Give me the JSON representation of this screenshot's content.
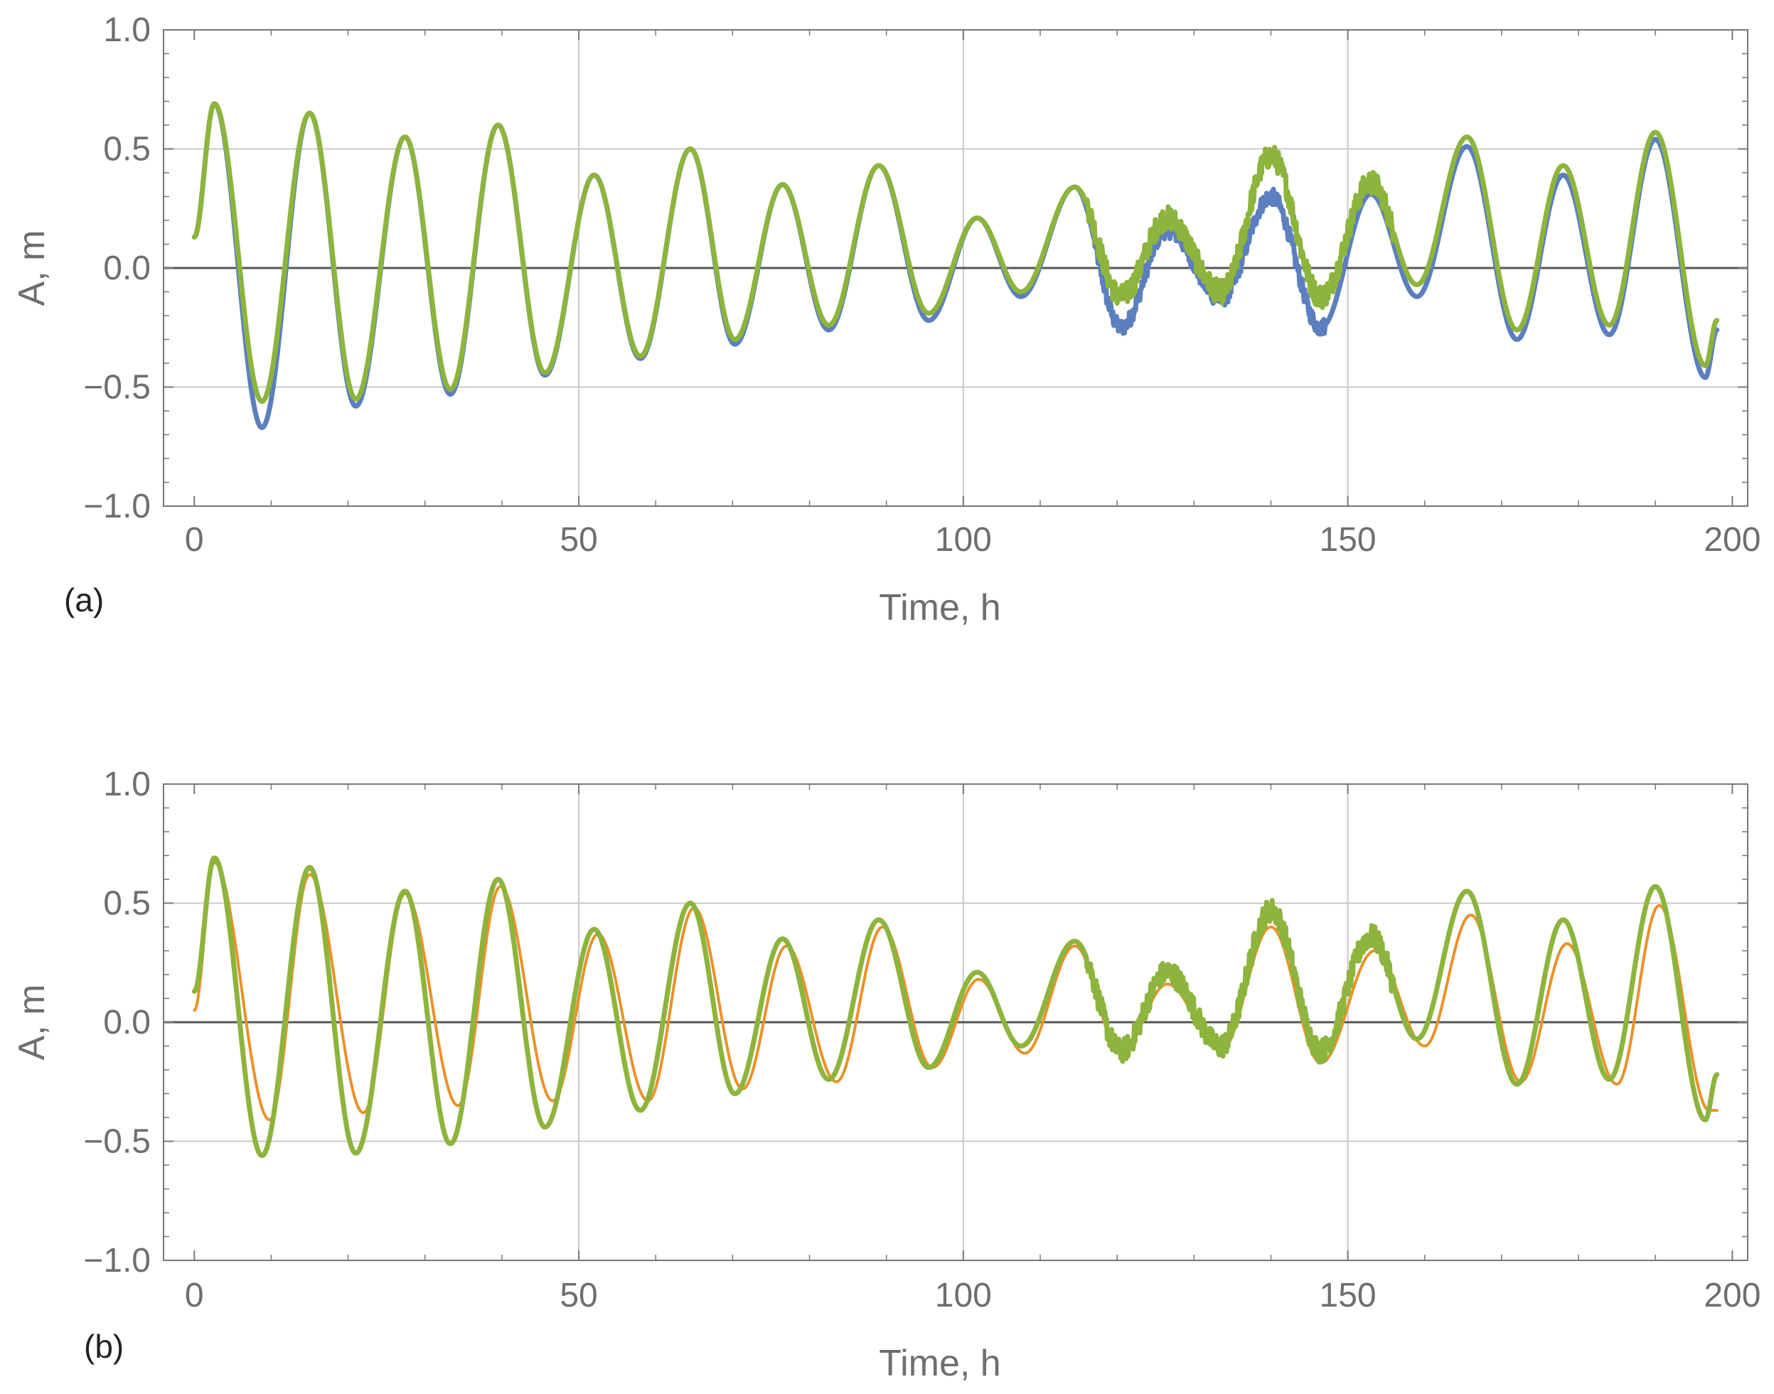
{
  "colors": {
    "blue": "#5b7fbf",
    "green": "#8db43c",
    "orange": "#e8922a",
    "grid": "#c9c9c9",
    "zero_line": "#555555",
    "frame": "#777777"
  },
  "chart_data": [
    {
      "type": "line",
      "panel_label": "(a)",
      "xlabel": "Time, h",
      "ylabel": "A, m",
      "xlim": [
        -4,
        202
      ],
      "ylim": [
        -1.0,
        1.0
      ],
      "x_ticks": [
        "0",
        "50",
        "100",
        "150",
        "200"
      ],
      "y_ticks": [
        "1.0",
        "0.5",
        "0.0",
        "−0.5",
        "−1.0"
      ],
      "grid_x": [
        50,
        100,
        150
      ],
      "grid_y": [
        0.5,
        -0.5
      ],
      "zero_line": true,
      "series": [
        {
          "color": "#5b7fbf",
          "x": [
            0,
            2.6,
            8.8,
            15.0,
            21.0,
            27.4,
            33.3,
            39.5,
            45.6,
            52.0,
            58.0,
            64.5,
            70.3,
            76.5,
            82.5,
            89.0,
            95.5,
            101.8,
            107.5,
            114.5,
            120.5,
            126.5,
            133.5,
            140.0,
            146.5,
            153.0,
            159.0,
            165.5,
            172.0,
            178.0,
            184.0,
            190.0,
            196.5,
            198.0
          ],
          "y": [
            0.13,
            0.69,
            -0.67,
            0.65,
            -0.58,
            0.55,
            -0.53,
            0.6,
            -0.45,
            0.39,
            -0.38,
            0.5,
            -0.32,
            0.35,
            -0.26,
            0.43,
            -0.22,
            0.21,
            -0.12,
            0.34,
            -0.25,
            0.16,
            -0.13,
            0.3,
            -0.25,
            0.31,
            -0.12,
            0.51,
            -0.3,
            0.39,
            -0.28,
            0.54,
            -0.46,
            -0.26
          ],
          "noise": [
            [
              117,
              147,
              0.035
            ]
          ]
        },
        {
          "color": "#8db43c",
          "x": [
            0,
            2.6,
            8.8,
            15.0,
            21.0,
            27.4,
            33.3,
            39.5,
            45.6,
            52.0,
            58.0,
            64.5,
            70.3,
            76.5,
            82.5,
            89.0,
            95.5,
            101.8,
            107.5,
            114.5,
            120.5,
            126.5,
            133.5,
            140.0,
            146.5,
            153.0,
            159.0,
            165.5,
            172.0,
            178.0,
            184.0,
            190.0,
            196.5,
            198.0
          ],
          "y": [
            0.13,
            0.69,
            -0.56,
            0.65,
            -0.55,
            0.55,
            -0.51,
            0.6,
            -0.44,
            0.39,
            -0.37,
            0.5,
            -0.3,
            0.35,
            -0.24,
            0.43,
            -0.19,
            0.21,
            -0.1,
            0.34,
            -0.12,
            0.21,
            -0.1,
            0.47,
            -0.12,
            0.36,
            -0.07,
            0.55,
            -0.26,
            0.43,
            -0.24,
            0.57,
            -0.41,
            -0.22
          ],
          "noise": [
            [
              116,
              156,
              0.05
            ]
          ]
        }
      ]
    },
    {
      "type": "line",
      "panel_label": "(b)",
      "xlabel": "Time, h",
      "ylabel": "A, m",
      "xlim": [
        -4,
        202
      ],
      "ylim": [
        -1.0,
        1.0
      ],
      "x_ticks": [
        "0",
        "50",
        "100",
        "150",
        "200"
      ],
      "y_ticks": [
        "1.0",
        "0.5",
        "0.0",
        "−0.5",
        "−1.0"
      ],
      "grid_x": [
        50,
        100,
        150
      ],
      "grid_y": [
        0.5,
        -0.5
      ],
      "zero_line": true,
      "series": [
        {
          "color": "#e8922a",
          "x": [
            0,
            2.6,
            9.8,
            15.0,
            22.0,
            27.4,
            34.3,
            39.8,
            46.6,
            52.5,
            59.0,
            65.0,
            71.3,
            77.0,
            83.5,
            89.5,
            96.0,
            102.0,
            108.0,
            114.5,
            120.5,
            126.5,
            133.5,
            140.0,
            146.5,
            153.5,
            160.0,
            166.0,
            172.5,
            178.5,
            185.0,
            190.5,
            197.0,
            198.0
          ],
          "y": [
            0.05,
            0.67,
            -0.41,
            0.62,
            -0.38,
            0.54,
            -0.35,
            0.57,
            -0.33,
            0.37,
            -0.33,
            0.48,
            -0.28,
            0.32,
            -0.25,
            0.4,
            -0.19,
            0.18,
            -0.13,
            0.32,
            -0.13,
            0.16,
            -0.12,
            0.4,
            -0.17,
            0.3,
            -0.1,
            0.45,
            -0.25,
            0.33,
            -0.26,
            0.49,
            -0.37,
            -0.37
          ]
        },
        {
          "color": "#8db43c",
          "x": [
            0,
            2.6,
            8.8,
            15.0,
            21.0,
            27.4,
            33.3,
            39.5,
            45.6,
            52.0,
            58.0,
            64.5,
            70.3,
            76.5,
            82.5,
            89.0,
            95.5,
            101.8,
            107.5,
            114.5,
            120.5,
            126.5,
            133.5,
            140.0,
            146.5,
            153.0,
            159.0,
            165.5,
            172.0,
            178.0,
            184.0,
            190.0,
            196.5,
            198.0
          ],
          "y": [
            0.13,
            0.69,
            -0.56,
            0.65,
            -0.55,
            0.55,
            -0.51,
            0.6,
            -0.44,
            0.39,
            -0.37,
            0.5,
            -0.3,
            0.35,
            -0.24,
            0.43,
            -0.19,
            0.21,
            -0.1,
            0.34,
            -0.12,
            0.21,
            -0.1,
            0.47,
            -0.12,
            0.36,
            -0.07,
            0.55,
            -0.26,
            0.43,
            -0.24,
            0.57,
            -0.41,
            -0.22
          ],
          "noise": [
            [
              116,
              156,
              0.05
            ]
          ]
        }
      ]
    }
  ]
}
